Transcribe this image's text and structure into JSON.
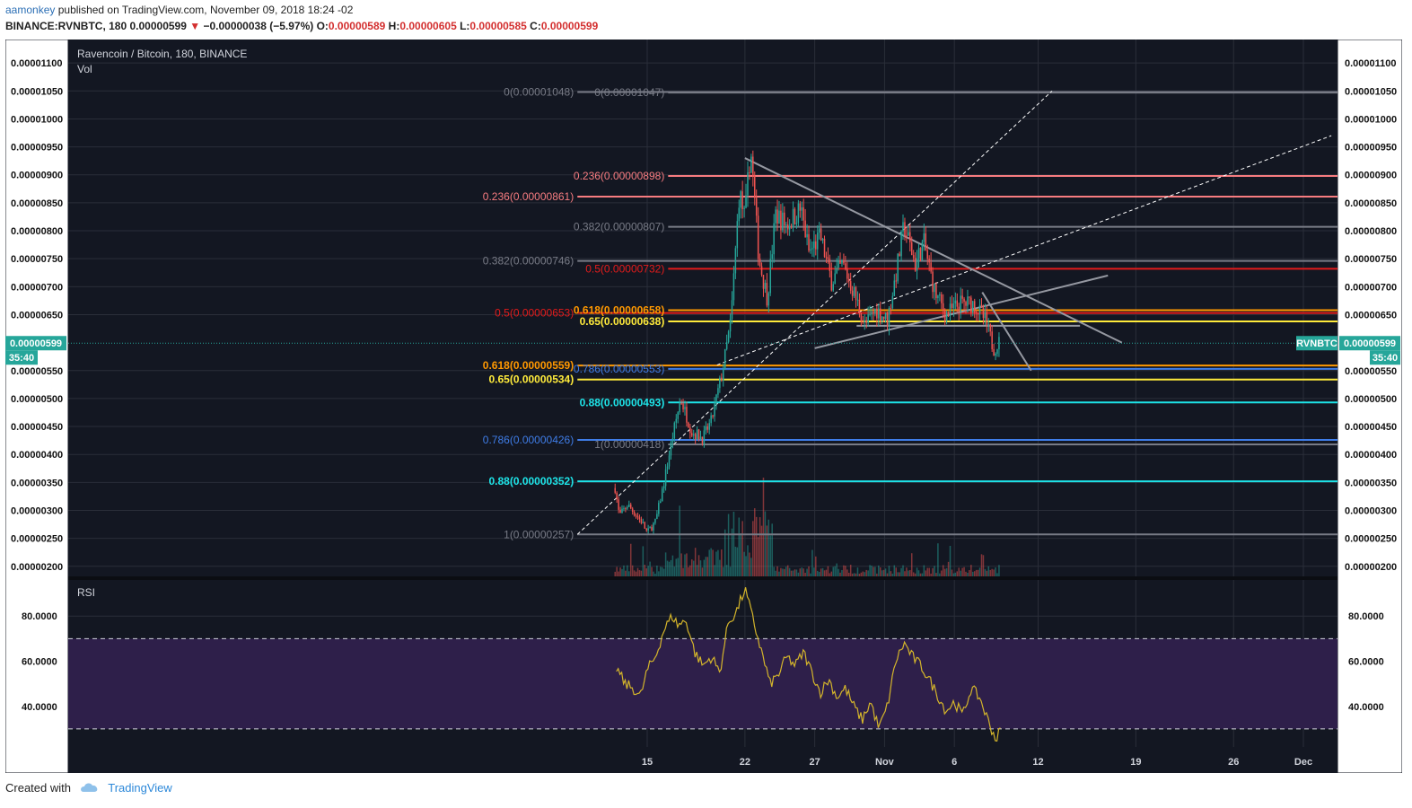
{
  "header": {
    "author": "aamonkey",
    "published": "published on TradingView.com, November 09, 2018 18:24 -02",
    "symbol": "BINANCE:RVNBTC, 180",
    "last": "0.00000599",
    "change": "−0.00000038 (−5.97%)",
    "o_label": "O:",
    "o_value": "0.00000589",
    "h_label": "H:",
    "h_value": "0.00000605",
    "l_label": "L:",
    "l_value": "0.00000585",
    "c_label": "C:",
    "c_value": "0.00000599"
  },
  "legend": {
    "title": "Ravencoin / Bitcoin, 180, BINANCE",
    "vol": "Vol",
    "rsi": "RSI"
  },
  "footer": {
    "created": "Created with",
    "brand": "TradingView"
  },
  "colors": {
    "background": "#131722",
    "grid": "#2a2e39",
    "up": "#26a69a",
    "down": "#ef5350",
    "rsi_line": "#d4b52b",
    "rsi_band": "#2e1f4a",
    "axis_text": "#111111"
  },
  "chart_data": {
    "type": "candlestick",
    "title": "Ravencoin / Bitcoin, 180, BINANCE",
    "price_axis": {
      "ticks": [
        1.1e-05,
        1.05e-05,
        1e-05,
        9.5e-06,
        9e-06,
        8.5e-06,
        8e-06,
        7.5e-06,
        7e-06,
        6.5e-06,
        5.5e-06,
        5e-06,
        4.5e-06,
        4e-06,
        3.5e-06,
        3e-06,
        2.5e-06,
        2e-06
      ],
      "tick_labels": [
        "0.00001100",
        "0.00001050",
        "0.00001000",
        "0.00000950",
        "0.00000900",
        "0.00000850",
        "0.00000800",
        "0.00000750",
        "0.00000700",
        "0.00000650",
        "0.00000550",
        "0.00000500",
        "0.00000450",
        "0.00000400",
        "0.00000350",
        "0.00000300",
        "0.00000250",
        "0.00000200"
      ],
      "range": [
        1.82e-06,
        1.142e-05
      ]
    },
    "current_price": {
      "value": 5.99e-06,
      "label": "0.00000599",
      "countdown": "35:40",
      "symbol": "RVNBTC"
    },
    "time_axis": {
      "labels": [
        "15",
        "22",
        "27",
        "Nov",
        "6",
        "12",
        "19",
        "26",
        "Dec"
      ],
      "days": [
        15,
        22,
        27,
        32,
        37,
        43,
        50,
        57,
        62
      ]
    },
    "price_path": [
      [
        12.7,
        3.4e-06
      ],
      [
        13.0,
        2.9e-06
      ],
      [
        13.6,
        3.1e-06
      ],
      [
        14.6,
        2.8e-06
      ],
      [
        15.0,
        2.6e-06
      ],
      [
        15.6,
        2.8e-06
      ],
      [
        16.2,
        3.5e-06
      ],
      [
        16.8,
        4.3e-06
      ],
      [
        17.4,
        5e-06
      ],
      [
        18.2,
        4.4e-06
      ],
      [
        19.0,
        4.3e-06
      ],
      [
        19.6,
        4.6e-06
      ],
      [
        20.4,
        5.5e-06
      ],
      [
        21.0,
        6.4e-06
      ],
      [
        21.6,
        8.7e-06
      ],
      [
        22.0,
        8.2e-06
      ],
      [
        22.4,
        9.5e-06
      ],
      [
        23.0,
        7.5e-06
      ],
      [
        23.6,
        6.8e-06
      ],
      [
        24.2,
        8.3e-06
      ],
      [
        25.0,
        8.1e-06
      ],
      [
        26.0,
        8.4e-06
      ],
      [
        26.6,
        7.6e-06
      ],
      [
        27.4,
        7.9e-06
      ],
      [
        28.2,
        7.1e-06
      ],
      [
        29.0,
        7.4e-06
      ],
      [
        29.8,
        6.9e-06
      ],
      [
        30.6,
        6.3e-06
      ],
      [
        31.4,
        6.6e-06
      ],
      [
        32.2,
        6.4e-06
      ],
      [
        32.8,
        7.2e-06
      ],
      [
        33.4,
        8.1e-06
      ],
      [
        34.2,
        7.4e-06
      ],
      [
        34.8,
        7.8e-06
      ],
      [
        35.6,
        6.9e-06
      ],
      [
        36.4,
        6.5e-06
      ],
      [
        37.4,
        6.7e-06
      ],
      [
        38.4,
        6.7e-06
      ],
      [
        39.2,
        6.4e-06
      ],
      [
        39.8,
        5.9e-06
      ],
      [
        40.2,
        6e-06
      ]
    ],
    "rsi": {
      "ticks": [
        80,
        60,
        40
      ],
      "tick_labels": [
        "80.0000",
        "60.0000",
        "40.0000"
      ],
      "band": [
        30,
        70
      ],
      "range": [
        22,
        96
      ],
      "path": [
        [
          12.8,
          57
        ],
        [
          13.4,
          50
        ],
        [
          14.0,
          48
        ],
        [
          14.5,
          44
        ],
        [
          15.0,
          56
        ],
        [
          15.6,
          62
        ],
        [
          16.2,
          74
        ],
        [
          16.8,
          80
        ],
        [
          17.2,
          76
        ],
        [
          17.8,
          78
        ],
        [
          18.4,
          64
        ],
        [
          19.0,
          58
        ],
        [
          19.6,
          62
        ],
        [
          20.2,
          55
        ],
        [
          20.8,
          77
        ],
        [
          21.4,
          82
        ],
        [
          22.0,
          92
        ],
        [
          22.6,
          78
        ],
        [
          23.2,
          64
        ],
        [
          23.8,
          50
        ],
        [
          24.4,
          54
        ],
        [
          25.0,
          62
        ],
        [
          25.6,
          58
        ],
        [
          26.2,
          64
        ],
        [
          26.8,
          55
        ],
        [
          27.4,
          46
        ],
        [
          28.0,
          52
        ],
        [
          28.6,
          44
        ],
        [
          29.2,
          48
        ],
        [
          29.8,
          40
        ],
        [
          30.4,
          34
        ],
        [
          31.0,
          42
        ],
        [
          31.6,
          30
        ],
        [
          32.2,
          40
        ],
        [
          32.8,
          60
        ],
        [
          33.4,
          68
        ],
        [
          34.0,
          62
        ],
        [
          34.6,
          58
        ],
        [
          35.2,
          52
        ],
        [
          35.8,
          45
        ],
        [
          36.4,
          38
        ],
        [
          37.0,
          42
        ],
        [
          37.6,
          36
        ],
        [
          38.2,
          48
        ],
        [
          38.8,
          44
        ],
        [
          39.4,
          34
        ],
        [
          40.0,
          25
        ],
        [
          40.3,
          30
        ]
      ]
    },
    "fib_levels": [
      {
        "label": "0(0.00001048)",
        "price": 1.048e-05,
        "color": "#787b86",
        "start_day": 10,
        "label_side": "left"
      },
      {
        "label": "0.236(0.00000861)",
        "price": 8.61e-06,
        "color": "#f77c80",
        "start_day": 10,
        "label_side": "left"
      },
      {
        "label": "0.382(0.00000746)",
        "price": 7.46e-06,
        "color": "#787b86",
        "start_day": 10,
        "label_side": "left"
      },
      {
        "label": "0.5(0.00000653)",
        "price": 6.53e-06,
        "color": "#e31b1b",
        "start_day": 10,
        "label_side": "left"
      },
      {
        "label": "0.618(0.00000559)",
        "price": 5.59e-06,
        "color": "#ff9800",
        "start_day": 10,
        "label_side": "left"
      },
      {
        "label": "0.65(0.00000534)",
        "price": 5.34e-06,
        "color": "#ffeb3b",
        "start_day": 10,
        "label_side": "left"
      },
      {
        "label": "0.786(0.00000426)",
        "price": 4.26e-06,
        "color": "#3f7de8",
        "start_day": 10,
        "label_side": "left"
      },
      {
        "label": "0.88(0.00000352)",
        "price": 3.52e-06,
        "color": "#1ee4e8",
        "start_day": 10,
        "label_side": "left"
      },
      {
        "label": "1(0.00000257)",
        "price": 2.57e-06,
        "color": "#787b86",
        "start_day": 10,
        "label_side": "left"
      },
      {
        "label": "0(0.00001047)",
        "price": 1.047e-05,
        "color": "#787b86",
        "start_day": 16.5,
        "label_side": "right"
      },
      {
        "label": "0.236(0.00000898)",
        "price": 8.98e-06,
        "color": "#f77c80",
        "start_day": 16.5,
        "label_side": "right"
      },
      {
        "label": "0.382(0.00000807)",
        "price": 8.07e-06,
        "color": "#787b86",
        "start_day": 16.5,
        "label_side": "right"
      },
      {
        "label": "0.5(0.00000732)",
        "price": 7.32e-06,
        "color": "#e31b1b",
        "start_day": 16.5,
        "label_side": "right"
      },
      {
        "label": "0.618(0.00000658)",
        "price": 6.58e-06,
        "color": "#ff9800",
        "start_day": 16.5,
        "label_side": "right"
      },
      {
        "label": "0.65(0.00000638)",
        "price": 6.38e-06,
        "color": "#ffeb3b",
        "start_day": 16.5,
        "label_side": "right"
      },
      {
        "label": "0.786(0.00000553)",
        "price": 5.53e-06,
        "color": "#3f7de8",
        "start_day": 16.5,
        "label_side": "right"
      },
      {
        "label": "0.88(0.00000493)",
        "price": 4.93e-06,
        "color": "#1ee4e8",
        "start_day": 16.5,
        "label_side": "right"
      },
      {
        "label": "1(0.00000418)",
        "price": 4.18e-06,
        "color": "#787b86",
        "start_day": 16.5,
        "label_side": "right"
      }
    ],
    "trend_lines": [
      {
        "from": [
          10,
          2.57e-06
        ],
        "to": [
          44,
          1.05e-05
        ],
        "style": "dashed",
        "color": "#ffffff"
      },
      {
        "from": [
          20,
          5.6e-06
        ],
        "to": [
          64,
          9.7e-06
        ],
        "style": "dashed",
        "color": "#ffffff"
      },
      {
        "from": [
          22,
          9.3e-06
        ],
        "to": [
          49,
          6e-06
        ],
        "style": "solid",
        "color": "#9598a1"
      },
      {
        "from": [
          27,
          5.9e-06
        ],
        "to": [
          48,
          7.2e-06
        ],
        "style": "solid",
        "color": "#9598a1"
      },
      {
        "from": [
          30,
          6.3e-06
        ],
        "to": [
          46,
          6.3e-06
        ],
        "style": "solid",
        "color": "#9598a1"
      },
      {
        "from": [
          39,
          6.9e-06
        ],
        "to": [
          42.5,
          5.5e-06
        ],
        "style": "solid",
        "color": "#9598a1"
      }
    ]
  }
}
